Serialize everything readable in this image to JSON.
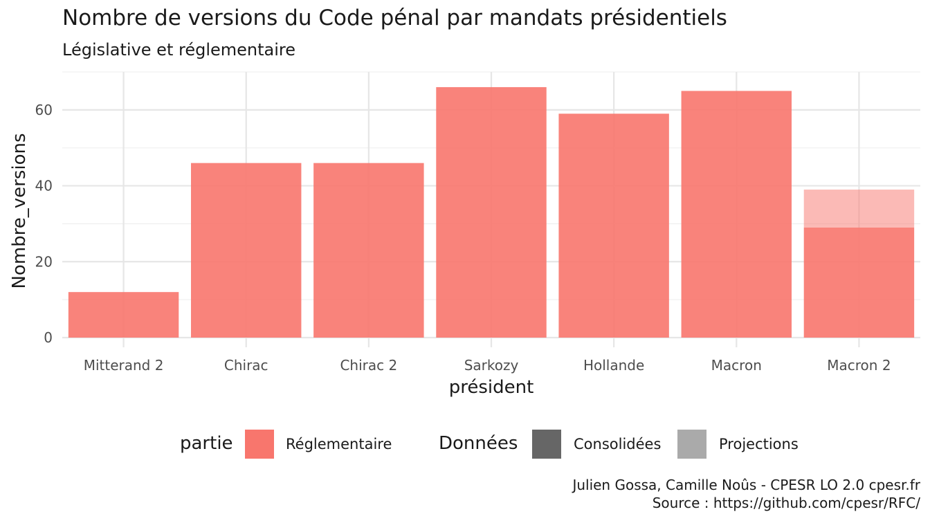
{
  "chart_data": {
    "type": "bar",
    "title": "Nombre de versions du Code pénal par mandats présidentiels",
    "subtitle": "Législative et réglementaire",
    "xlabel": "président",
    "ylabel": "Nombre_versions",
    "categories": [
      "Mitterand 2",
      "Chirac",
      "Chirac 2",
      "Sarkozy",
      "Hollande",
      "Macron",
      "Macron 2"
    ],
    "series": [
      {
        "name": "Consolidées",
        "values": [
          12,
          46,
          46,
          66,
          59,
          65,
          29
        ]
      },
      {
        "name": "Projections",
        "values": [
          0,
          0,
          0,
          0,
          0,
          0,
          10
        ]
      }
    ],
    "stacked": true,
    "ylim": [
      0,
      70
    ],
    "yticks": [
      0,
      20,
      40,
      60
    ],
    "grid": true,
    "colors": {
      "reglementaire": "#F8766D",
      "consolidees": "#666666",
      "projections": "#aaaaaa"
    },
    "legend": {
      "position": "bottom",
      "partie_title": "partie",
      "partie_items": [
        "Réglementaire"
      ],
      "donnees_title": "Données",
      "donnees_items": [
        "Consolidées",
        "Projections"
      ]
    },
    "caption": [
      "Julien Gossa, Camille Noûs - CPESR LO 2.0 cpesr.fr",
      "Source : https://github.com/cpesr/RFC/"
    ]
  }
}
